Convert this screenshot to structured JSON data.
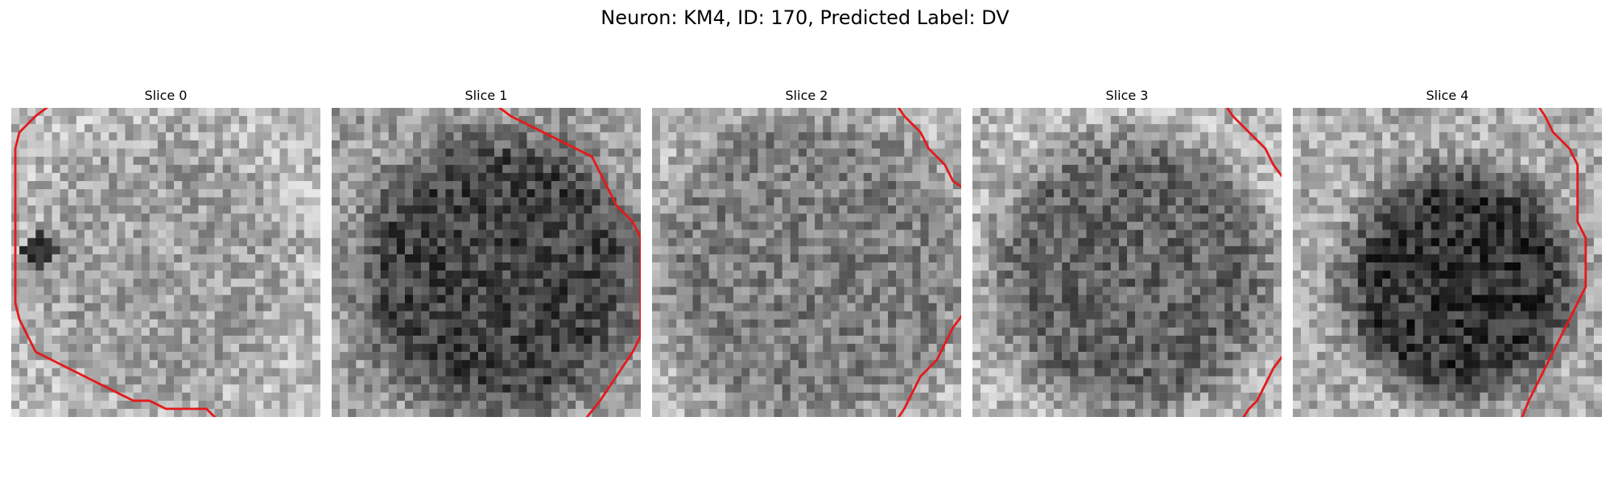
{
  "figure": {
    "title": "Neuron: KM4, ID: 170, Predicted Label: DV",
    "colormap": "gray",
    "contour_color": "#e41a1c"
  },
  "panels": [
    {
      "title": "Slice 0",
      "mean_intensity": 0.58,
      "contour": [
        [
          5,
          -0.5
        ],
        [
          3,
          1
        ],
        [
          1,
          3
        ],
        [
          0.5,
          5
        ],
        [
          0.5,
          24
        ],
        [
          1,
          26
        ],
        [
          2,
          28
        ],
        [
          3,
          30
        ],
        [
          5,
          31
        ],
        [
          7,
          32
        ],
        [
          9,
          33
        ],
        [
          11,
          34
        ],
        [
          13,
          35
        ],
        [
          15,
          36
        ],
        [
          17,
          36
        ],
        [
          19,
          37
        ],
        [
          24,
          37
        ],
        [
          25.5,
          38.5
        ]
      ]
    },
    {
      "title": "Slice 1",
      "mean_intensity": 0.35,
      "contour": [
        [
          20,
          -0.5
        ],
        [
          22,
          1
        ],
        [
          24,
          2
        ],
        [
          26,
          3
        ],
        [
          28,
          4
        ],
        [
          30,
          5
        ],
        [
          32,
          6
        ],
        [
          33,
          8
        ],
        [
          34,
          10
        ],
        [
          35,
          12
        ],
        [
          37,
          14
        ],
        [
          38,
          16
        ],
        [
          38,
          28
        ],
        [
          37,
          30
        ],
        [
          35,
          33
        ],
        [
          33,
          36
        ],
        [
          31,
          38.5
        ]
      ]
    },
    {
      "title": "Slice 2",
      "mean_intensity": 0.5,
      "contour": [
        [
          30,
          -0.5
        ],
        [
          31,
          1
        ],
        [
          33,
          3
        ],
        [
          34,
          5
        ],
        [
          36,
          7
        ],
        [
          37,
          9
        ],
        [
          38.5,
          10
        ],
        [
          38.5,
          25
        ],
        [
          37,
          27
        ],
        [
          36,
          29
        ],
        [
          35,
          31
        ],
        [
          34,
          32
        ],
        [
          33,
          33
        ],
        [
          32,
          35
        ],
        [
          31,
          37
        ],
        [
          30,
          38.5
        ]
      ]
    },
    {
      "title": "Slice 3",
      "mean_intensity": 0.48,
      "contour": [
        [
          31,
          -0.5
        ],
        [
          32,
          1
        ],
        [
          33,
          2
        ],
        [
          34,
          3
        ],
        [
          35,
          4
        ],
        [
          36,
          5
        ],
        [
          37,
          7
        ],
        [
          38.5,
          9
        ],
        [
          38.5,
          30
        ],
        [
          37,
          32
        ],
        [
          36,
          34
        ],
        [
          35,
          36
        ],
        [
          34,
          37
        ],
        [
          33,
          38.5
        ]
      ]
    },
    {
      "title": "Slice 4",
      "mean_intensity": 0.4,
      "contour": [
        [
          30,
          -0.5
        ],
        [
          31,
          1
        ],
        [
          32,
          3
        ],
        [
          34,
          5
        ],
        [
          35,
          7
        ],
        [
          35,
          9
        ],
        [
          35,
          14
        ],
        [
          36,
          16
        ],
        [
          36,
          22
        ],
        [
          35,
          24
        ],
        [
          34,
          26
        ],
        [
          33,
          28
        ],
        [
          32,
          30
        ],
        [
          31,
          32
        ],
        [
          30,
          34
        ],
        [
          29,
          36
        ],
        [
          28,
          38.5
        ]
      ]
    }
  ]
}
